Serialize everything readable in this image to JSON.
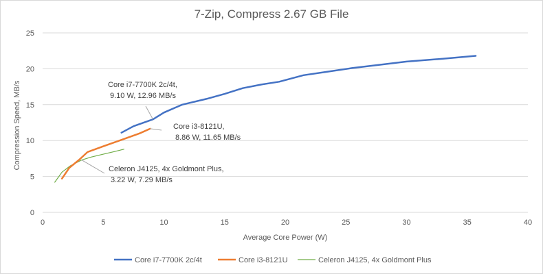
{
  "chart_data": {
    "type": "line",
    "title": "7-Zip, Compress 2.67 GB File",
    "xlabel": "Average Core Power (W)",
    "ylabel": "Compression Speed, MB/s",
    "xlim": [
      0,
      40
    ],
    "ylim": [
      0,
      25
    ],
    "x_ticks": [
      0,
      5,
      10,
      15,
      20,
      25,
      30,
      35,
      40
    ],
    "y_ticks": [
      0,
      5,
      10,
      15,
      20,
      25
    ],
    "grid": "horizontal",
    "legend_position": "bottom",
    "series": [
      {
        "name": "Core i7-7700K 2c/4t",
        "color": "#4472c4",
        "stroke_width": 2.5,
        "points": [
          [
            6.5,
            11.1
          ],
          [
            7.5,
            12.0
          ],
          [
            9.1,
            12.96
          ],
          [
            10.0,
            13.9
          ],
          [
            11.5,
            15.0
          ],
          [
            13.5,
            15.8
          ],
          [
            15.0,
            16.5
          ],
          [
            16.5,
            17.3
          ],
          [
            18.0,
            17.8
          ],
          [
            19.5,
            18.2
          ],
          [
            21.5,
            19.1
          ],
          [
            23.5,
            19.6
          ],
          [
            25.5,
            20.1
          ],
          [
            28.0,
            20.6
          ],
          [
            30.0,
            21.0
          ],
          [
            33.0,
            21.4
          ],
          [
            35.7,
            21.8
          ]
        ]
      },
      {
        "name": "Core i3-8121U",
        "color": "#ed7d31",
        "stroke_width": 2.5,
        "points": [
          [
            1.6,
            4.7
          ],
          [
            2.2,
            6.2
          ],
          [
            3.0,
            7.3
          ],
          [
            3.7,
            8.4
          ],
          [
            5.0,
            9.2
          ],
          [
            6.5,
            10.1
          ],
          [
            8.0,
            11.0
          ],
          [
            8.86,
            11.65
          ]
        ]
      },
      {
        "name": "Celeron J4125, 4x Goldmont Plus",
        "color": "#70ad47",
        "stroke_width": 1.2,
        "points": [
          [
            1.0,
            4.2
          ],
          [
            1.6,
            5.6
          ],
          [
            2.3,
            6.5
          ],
          [
            3.22,
            7.29
          ],
          [
            4.0,
            7.7
          ],
          [
            5.0,
            8.1
          ],
          [
            6.0,
            8.5
          ],
          [
            6.7,
            8.8
          ]
        ]
      }
    ],
    "annotations": [
      {
        "lines": [
          "Core i7-7700K 2c/4t,",
          "9.10 W, 12.96 MB/s"
        ],
        "x": 9.1,
        "y": 12.96
      },
      {
        "lines": [
          "Core i3-8121U,",
          "8.86 W, 11.65 MB/s"
        ],
        "x": 8.86,
        "y": 11.65
      },
      {
        "lines": [
          "Celeron J4125, 4x Goldmont Plus,",
          "3.22 W, 7.29 MB/s"
        ],
        "x": 3.22,
        "y": 7.29
      }
    ]
  }
}
